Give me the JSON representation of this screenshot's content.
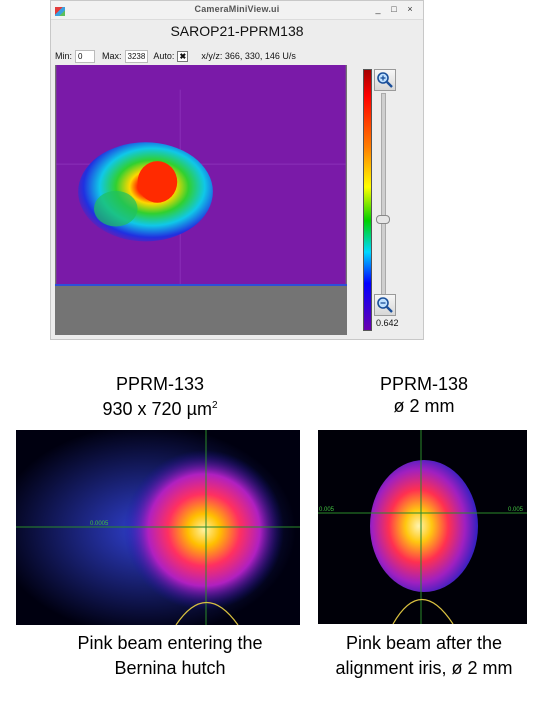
{
  "window": {
    "title_bar": "CameraMiniView.ui",
    "controls": [
      "_",
      "□",
      "×"
    ],
    "camera_title": "SAROP21-PPRM138",
    "min_label": "Min:",
    "min_value": "0",
    "max_label": "Max:",
    "max_value": "3238",
    "auto_label": "Auto:",
    "auto_checked": "✖",
    "xyz_readout": "x/y/z: 366, 330, 146 U/s",
    "colorbar_low": "0.642",
    "icons": [
      "app-icon",
      "zoom-in-icon",
      "zoom-out-icon"
    ]
  },
  "left_panel": {
    "title_line1": "PPRM-133",
    "title_line2": "930 x 720 µm",
    "title_sup": "2",
    "axis_label": "0.0005",
    "caption_line1": "Pink beam entering the",
    "caption_line2": "Bernina hutch"
  },
  "right_panel": {
    "title_line1": "PPRM-138",
    "title_line2": "ø 2 mm",
    "axis_label_left": "0.005",
    "axis_label_right": "0.005",
    "caption_line1": "Pink beam after the",
    "caption_line2": "alignment iris, ø 2 mm"
  },
  "colors": {
    "background_purple": "#7a1aa8",
    "overlay_green": "#1f7a1f"
  }
}
